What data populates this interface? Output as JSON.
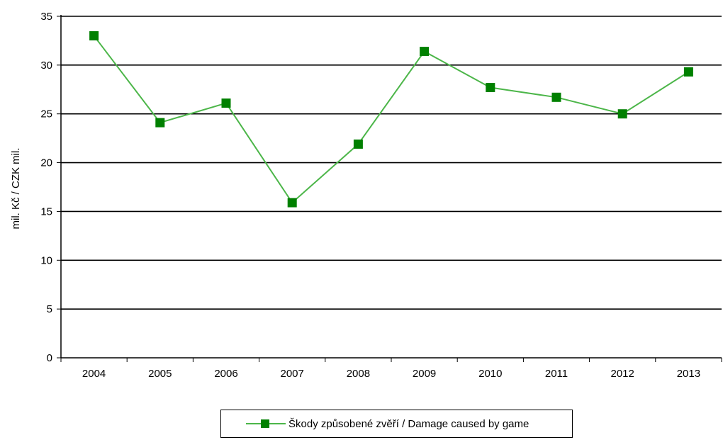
{
  "chart_data": {
    "type": "line",
    "title": "",
    "xlabel": "",
    "ylabel": "mil. Kč / CZK mil.",
    "categories": [
      "2004",
      "2005",
      "2006",
      "2007",
      "2008",
      "2009",
      "2010",
      "2011",
      "2012",
      "2013"
    ],
    "ylim": [
      0,
      35
    ],
    "yticks": [
      "0",
      "5",
      "10",
      "15",
      "20",
      "25",
      "30",
      "35"
    ],
    "grid": "horizontal",
    "legend_position": "bottom",
    "series": [
      {
        "name": "Škody způsobené zvěří / Damage caused by game",
        "values": [
          33.0,
          24.1,
          26.1,
          15.9,
          21.9,
          31.4,
          27.7,
          26.7,
          25.0,
          29.3
        ],
        "line_color": "#4cb649",
        "marker_color": "#008000",
        "marker": "square"
      }
    ]
  }
}
